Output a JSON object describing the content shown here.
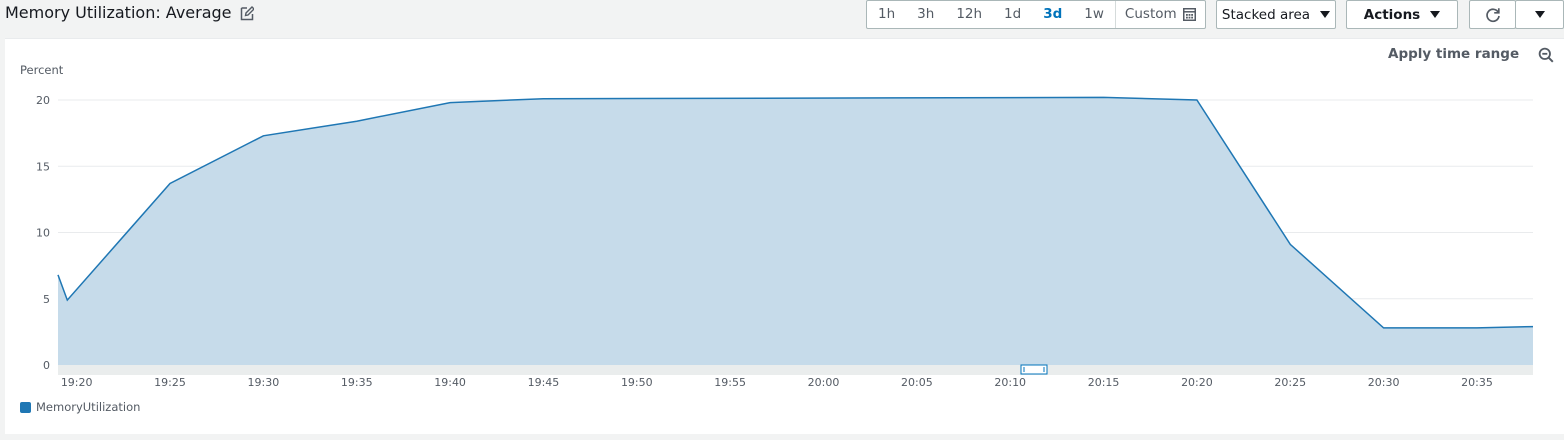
{
  "header": {
    "title": "Memory Utilization: Average",
    "time_ranges": [
      "1h",
      "3h",
      "12h",
      "1d",
      "3d",
      "1w"
    ],
    "active_range": "3d",
    "custom_label": "Custom",
    "chart_type_label": "Stacked area",
    "actions_label": "Actions"
  },
  "toolbar": {
    "apply_time_range": "Apply time range"
  },
  "colors": {
    "series": "#1f77b4",
    "fill": "#c6dbea",
    "accent": "#0073bb"
  },
  "chart_data": {
    "type": "area",
    "title": "Memory Utilization: Average",
    "ylabel": "Percent",
    "xlabel": "",
    "ylim": [
      0,
      20
    ],
    "yticks": [
      0,
      5,
      10,
      15,
      20
    ],
    "x_range_minutes": [
      1159,
      1238
    ],
    "xtick_labels": [
      "19:20",
      "19:25",
      "19:30",
      "19:35",
      "19:40",
      "19:45",
      "19:50",
      "19:55",
      "20:00",
      "20:05",
      "20:10",
      "20:15",
      "20:20",
      "20:25",
      "20:30",
      "20:35"
    ],
    "xtick_minutes": [
      1160,
      1165,
      1170,
      1175,
      1180,
      1185,
      1190,
      1195,
      1200,
      1205,
      1210,
      1215,
      1220,
      1225,
      1230,
      1235
    ],
    "series": [
      {
        "name": "MemoryUtilization",
        "x_minutes": [
          1159,
          1159.5,
          1165,
          1170,
          1175,
          1180,
          1185,
          1215,
          1220,
          1225,
          1230,
          1235,
          1238
        ],
        "values": [
          6.8,
          4.9,
          13.7,
          17.3,
          18.4,
          19.8,
          20.1,
          20.2,
          20.0,
          9.1,
          2.8,
          2.8,
          2.9
        ]
      }
    ],
    "legend": [
      "MemoryUtilization"
    ]
  }
}
